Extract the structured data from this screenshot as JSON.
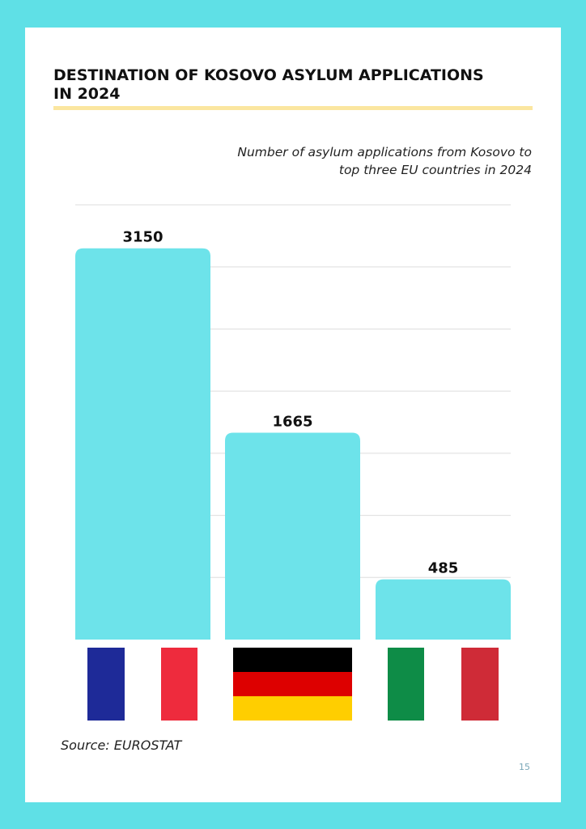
{
  "page": {
    "title": "DESTINATION OF KOSOVO ASYLUM APPLICATIONS IN 2024",
    "subtitle_lines": [
      "Number of asylum applications from Kosovo to",
      "top three EU countries in 2024"
    ],
    "source": "Source: EUROSTAT",
    "page_number": "15"
  },
  "colors": {
    "background": "#5fe0e6",
    "bar": "#6de3ea",
    "grid": "#dddddd",
    "title_rule": "#fbe6a0"
  },
  "chart_data": {
    "type": "bar",
    "title": "DESTINATION OF KOSOVO ASYLUM APPLICATIONS IN 2024",
    "subtitle": "Number of asylum applications from Kosovo to top three EU countries in 2024",
    "categories_icons": [
      "france-flag-icon",
      "germany-flag-icon",
      "italy-flag-icon"
    ],
    "values": [
      3150,
      1665,
      485
    ],
    "ylim": [
      0,
      3500
    ],
    "grid": true,
    "gridlines": [
      500,
      1000,
      1500,
      2000,
      2500,
      3000,
      3500
    ],
    "data_labels": true
  },
  "flags": [
    {
      "icon": "france-flag-icon",
      "colors": [
        "#1e2a98",
        "#ffffff",
        "#ee2b3d"
      ]
    },
    {
      "icon": "germany-flag-icon",
      "colors": [
        "#000000",
        "#dd0000",
        "#ffce00"
      ]
    },
    {
      "icon": "italy-flag-icon",
      "colors": [
        "#0e8c47",
        "#ffffff",
        "#cf2b37"
      ]
    }
  ]
}
